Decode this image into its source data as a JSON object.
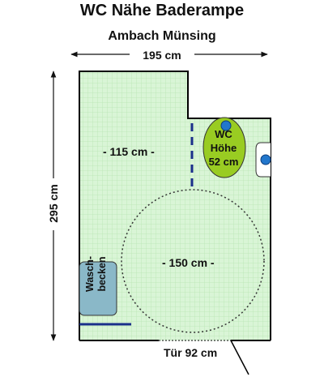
{
  "title": "WC Nähe Baderampe",
  "subtitle": "Ambach Münsing",
  "dimensions": {
    "width": "195 cm",
    "height": "295 cm",
    "free_width": "- 115 cm -",
    "turning_circle": "- 150 cm -",
    "door": "Tür 92 cm"
  },
  "wc": {
    "line1": "WC",
    "line2": "Höhe",
    "line3": "52 cm"
  },
  "sink": {
    "line1": "Wasch-",
    "line2": "becken"
  },
  "colors": {
    "floor": "#d9f5d6",
    "grid": "#b9e6b4",
    "wall": "#000000",
    "wc": "#99cc22",
    "sink": "#8ab8c8",
    "fixture_blue": "#2277cc",
    "rail": "#1a2f8a"
  }
}
